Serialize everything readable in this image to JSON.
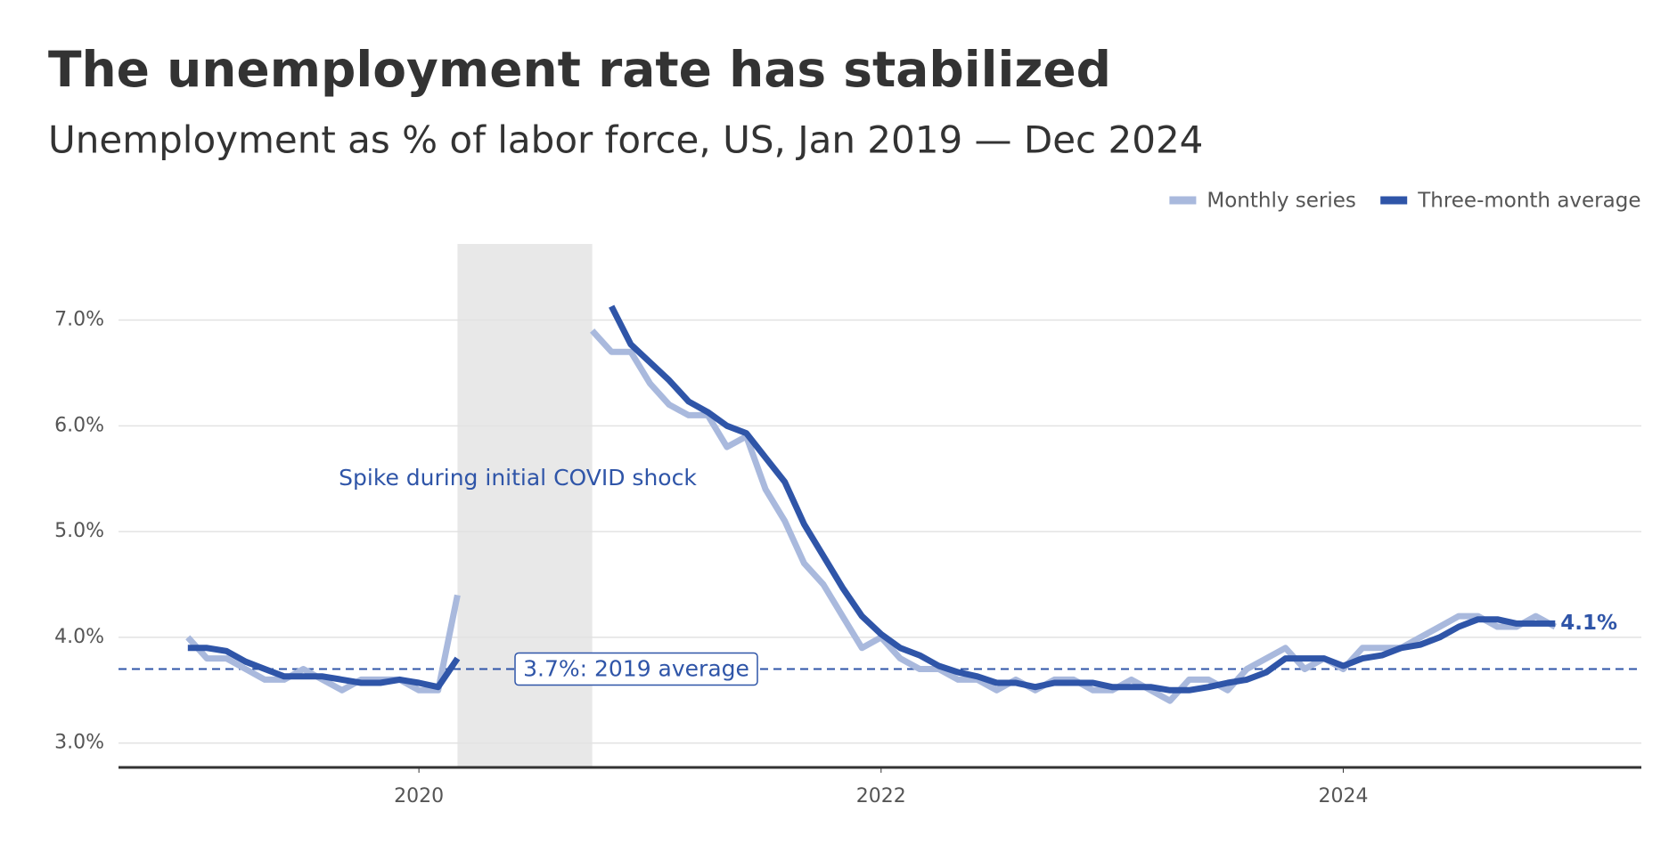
{
  "chart_data": {
    "type": "line",
    "title": "The unemployment rate has stabilized",
    "subtitle": "Unemployment as % of labor force, US, Jan 2019 — Dec 2024",
    "x": [
      2019,
      2019.083,
      2019.167,
      2019.25,
      2019.333,
      2019.417,
      2019.5,
      2019.583,
      2019.667,
      2019.75,
      2019.833,
      2019.917,
      2020,
      2020.083,
      2020.167,
      2020.25,
      2020.333,
      2020.417,
      2020.5,
      2020.583,
      2020.667,
      2020.75,
      2020.833,
      2020.917,
      2021,
      2021.083,
      2021.167,
      2021.25,
      2021.333,
      2021.417,
      2021.5,
      2021.583,
      2021.667,
      2021.75,
      2021.833,
      2021.917,
      2022,
      2022.083,
      2022.167,
      2022.25,
      2022.333,
      2022.417,
      2022.5,
      2022.583,
      2022.667,
      2022.75,
      2022.833,
      2022.917,
      2023,
      2023.083,
      2023.167,
      2023.25,
      2023.333,
      2023.417,
      2023.5,
      2023.583,
      2023.667,
      2023.75,
      2023.833,
      2023.917,
      2024,
      2024.083,
      2024.167,
      2024.25,
      2024.333,
      2024.417,
      2024.5,
      2024.583,
      2024.667,
      2024.75,
      2024.833,
      2024.917
    ],
    "series": [
      {
        "name": "Monthly series",
        "color": "#a9b9dd",
        "width": 7,
        "values": [
          4.0,
          3.8,
          3.8,
          3.7,
          3.6,
          3.6,
          3.7,
          3.6,
          3.5,
          3.6,
          3.6,
          3.6,
          3.5,
          3.5,
          4.4,
          null,
          null,
          null,
          null,
          null,
          null,
          6.9,
          6.7,
          6.7,
          6.4,
          6.2,
          6.1,
          6.1,
          5.8,
          5.9,
          5.4,
          5.1,
          4.7,
          4.5,
          4.2,
          3.9,
          4.0,
          3.8,
          3.7,
          3.7,
          3.6,
          3.6,
          3.5,
          3.6,
          3.5,
          3.6,
          3.6,
          3.5,
          3.5,
          3.6,
          3.5,
          3.4,
          3.6,
          3.6,
          3.5,
          3.7,
          3.8,
          3.9,
          3.7,
          3.8,
          3.7,
          3.9,
          3.9,
          3.9,
          4.0,
          4.1,
          4.2,
          4.2,
          4.1,
          4.1,
          4.2,
          4.1
        ]
      },
      {
        "name": "Three-month average",
        "color": "#2f55a8",
        "width": 7,
        "values": [
          3.9,
          3.9,
          3.87,
          3.77,
          3.7,
          3.63,
          3.63,
          3.63,
          3.6,
          3.57,
          3.57,
          3.6,
          3.57,
          3.53,
          3.8,
          null,
          null,
          null,
          null,
          null,
          null,
          null,
          7.13,
          6.77,
          6.6,
          6.43,
          6.23,
          6.13,
          6.0,
          5.93,
          5.7,
          5.47,
          5.07,
          4.77,
          4.47,
          4.2,
          4.03,
          3.9,
          3.83,
          3.73,
          3.67,
          3.63,
          3.57,
          3.57,
          3.53,
          3.57,
          3.57,
          3.57,
          3.53,
          3.53,
          3.53,
          3.5,
          3.5,
          3.53,
          3.57,
          3.6,
          3.67,
          3.8,
          3.8,
          3.8,
          3.73,
          3.8,
          3.83,
          3.9,
          3.93,
          4.0,
          4.1,
          4.17,
          4.17,
          4.13,
          4.13,
          4.13
        ],
        "value_labels": [
          null,
          null,
          null,
          null,
          null,
          null,
          null,
          null,
          null,
          null,
          null,
          null,
          null,
          null,
          null,
          null,
          null,
          null,
          null,
          null,
          null,
          null,
          null,
          null,
          null,
          null,
          null,
          null,
          null,
          null,
          null,
          null,
          null,
          null,
          null,
          null,
          null,
          null,
          null,
          null,
          null,
          null,
          null,
          null,
          null,
          null,
          null,
          null,
          null,
          null,
          null,
          null,
          null,
          null,
          null,
          null,
          null,
          null,
          null,
          null,
          null,
          null,
          null,
          null,
          null,
          null,
          null,
          null,
          null,
          null,
          null,
          "4.1%"
        ]
      }
    ],
    "xlim": [
      2018.7,
      2025.29
    ],
    "xticks": [
      2020,
      2022,
      2024
    ],
    "ylim": [
      2.77,
      7.72
    ],
    "yticks": [
      {
        "value": 3,
        "label": "3.0%"
      },
      {
        "value": 4,
        "label": "4.0%"
      },
      {
        "value": 5,
        "label": "5.0%"
      },
      {
        "value": 6,
        "label": "6.0%"
      },
      {
        "value": 7,
        "label": "7.0%"
      }
    ],
    "grid": true,
    "legend": "top-right",
    "shaded_region": {
      "range": [
        2020.167,
        2020.75
      ],
      "label": "Spike during initial COVID shock",
      "color": "#e8e8e8"
    },
    "reference_line": {
      "value": 3.7,
      "label": "3.7%: 2019 average",
      "color": "#2f55a8"
    }
  }
}
